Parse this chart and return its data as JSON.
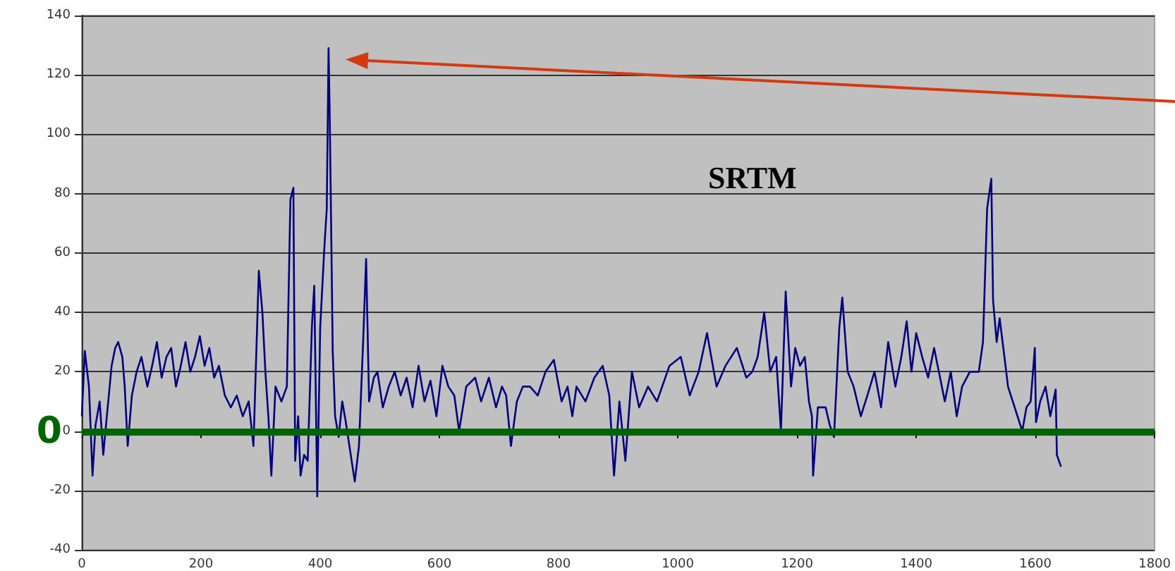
{
  "chart_data": {
    "type": "line",
    "annotations": [
      "SRTM"
    ],
    "x": [
      0,
      5,
      12,
      18,
      23,
      30,
      36,
      42,
      50,
      56,
      61,
      68,
      72,
      77,
      84,
      92,
      100,
      110,
      118,
      126,
      134,
      142,
      150,
      158,
      166,
      174,
      182,
      190,
      198,
      206,
      214,
      222,
      230,
      240,
      250,
      260,
      270,
      280,
      288,
      297,
      303,
      308,
      313,
      318,
      325,
      335,
      344,
      350,
      355,
      358,
      363,
      367,
      373,
      379,
      386,
      390,
      395,
      400,
      407,
      411,
      414,
      416,
      421,
      425,
      431,
      437,
      443,
      449,
      458,
      465,
      472,
      477,
      482,
      490,
      496,
      505,
      515,
      525,
      535,
      545,
      555,
      565,
      575,
      585,
      595,
      605,
      615,
      625,
      633,
      645,
      660,
      670,
      683,
      695,
      705,
      712,
      720,
      730,
      740,
      752,
      765,
      778,
      792,
      805,
      815,
      823,
      830,
      845,
      860,
      874,
      885,
      893,
      902,
      912,
      923,
      935,
      950,
      965,
      986,
      1005,
      1020,
      1035,
      1049,
      1065,
      1080,
      1099,
      1115,
      1125,
      1134,
      1145,
      1155,
      1165,
      1173,
      1181,
      1190,
      1197,
      1205,
      1213,
      1220,
      1225,
      1227,
      1235,
      1248,
      1255,
      1262,
      1271,
      1276,
      1285,
      1295,
      1307,
      1318,
      1330,
      1341,
      1353,
      1365,
      1375,
      1384,
      1392,
      1400,
      1410,
      1420,
      1430,
      1438,
      1448,
      1458,
      1468,
      1477,
      1490,
      1505,
      1512,
      1519,
      1526,
      1529,
      1535,
      1540,
      1548,
      1554,
      1562,
      1570,
      1578,
      1585,
      1592,
      1599,
      1601,
      1608,
      1617,
      1625,
      1634,
      1636,
      1643
    ],
    "values": [
      5,
      27,
      15,
      -15,
      2,
      10,
      -8,
      5,
      22,
      28,
      30,
      25,
      15,
      -5,
      12,
      20,
      25,
      15,
      22,
      30,
      18,
      25,
      28,
      15,
      22,
      30,
      20,
      25,
      32,
      22,
      28,
      18,
      22,
      12,
      8,
      12,
      5,
      10,
      -5,
      54,
      40,
      20,
      5,
      -15,
      15,
      10,
      15,
      78,
      82,
      -10,
      5,
      -15,
      -8,
      -10,
      35,
      49,
      -22,
      35,
      62,
      75,
      129,
      106,
      27,
      5,
      -2,
      10,
      3,
      -5,
      -17,
      -5,
      30,
      58,
      10,
      18,
      20,
      8,
      15,
      20,
      12,
      18,
      8,
      22,
      10,
      17,
      5,
      22,
      15,
      12,
      0,
      15,
      18,
      10,
      18,
      8,
      15,
      12,
      -5,
      10,
      15,
      15,
      12,
      20,
      24,
      10,
      15,
      5,
      15,
      10,
      18,
      22,
      12,
      -15,
      10,
      -10,
      20,
      8,
      15,
      10,
      22,
      25,
      12,
      20,
      33,
      15,
      22,
      28,
      18,
      20,
      25,
      40,
      20,
      25,
      0,
      47,
      15,
      28,
      22,
      25,
      10,
      5,
      -15,
      8,
      8,
      2,
      -2,
      35,
      45,
      20,
      15,
      5,
      12,
      20,
      8,
      30,
      15,
      25,
      37,
      20,
      33,
      25,
      18,
      28,
      20,
      10,
      20,
      5,
      15,
      20,
      20,
      30,
      75,
      85,
      44,
      30,
      38,
      25,
      15,
      10,
      5,
      0,
      8,
      10,
      28,
      3,
      10,
      15,
      5,
      14,
      -8,
      -12
    ],
    "color": "#000080",
    "xlim": [
      0,
      1800
    ],
    "xticks": [
      0,
      200,
      400,
      600,
      800,
      1000,
      1200,
      1400,
      1600,
      1800
    ],
    "ylim": [
      -40,
      140
    ],
    "yticks": [
      -40,
      -20,
      0,
      20,
      40,
      60,
      80,
      100,
      120,
      140
    ],
    "grid": "y",
    "marker": "none",
    "line_style": "solid",
    "ref_lines": [
      {
        "axis": "y",
        "value": 0,
        "label": "0",
        "color": "#006400"
      }
    ]
  }
}
